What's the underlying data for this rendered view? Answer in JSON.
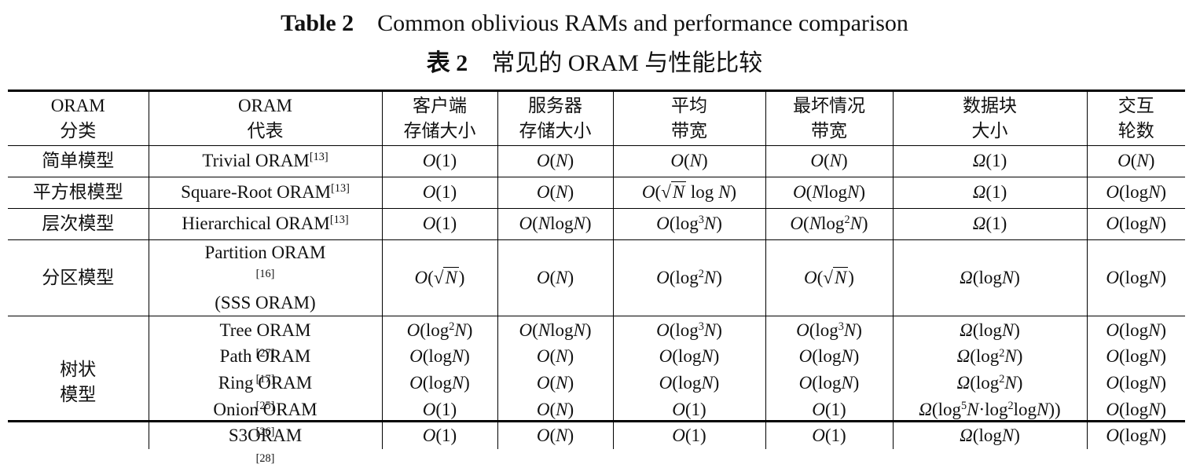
{
  "title": {
    "en_label": "Table 2",
    "en_text": "Common oblivious RAMs and performance comparison",
    "zh_label": "表 2",
    "zh_text": "常见的 ORAM 与性能比较"
  },
  "headers": [
    [
      "ORAM",
      "分类"
    ],
    [
      "ORAM",
      "代表"
    ],
    [
      "客户端",
      "存储大小"
    ],
    [
      "服务器",
      "存储大小"
    ],
    [
      "平均",
      "带宽"
    ],
    [
      "最坏情况",
      "带宽"
    ],
    [
      "数据块",
      "大小"
    ],
    [
      "交互",
      "轮数"
    ]
  ],
  "categories": {
    "simple": "简单模型",
    "sqrt": "平方根模型",
    "hier": "层次模型",
    "partition": "分区模型",
    "tree_l1": "树状",
    "tree_l2": "模型"
  },
  "representatives": {
    "trivial": "Trivial ORAM",
    "trivial_ref": "[13]",
    "square": "Square-Root ORAM",
    "square_ref": "[13]",
    "hier": "Hierarchical ORAM",
    "hier_ref": "[13]",
    "partition": "Partition ORAM",
    "partition_ref": "[16]",
    "partition_sub": "(SSS ORAM)",
    "tree": "Tree ORAM",
    "tree_ref": "[27]",
    "path": "Path ORAM",
    "path_ref": "[17]",
    "ring": "Ring ORAM",
    "ring_ref": "[25]",
    "onion": "Onion ORAM",
    "onion_ref": "[26]",
    "s3": "S3ORAM",
    "s3_ref": "[28]"
  },
  "cells": {
    "O1": "O(1)",
    "ON": "O(N)",
    "Omega1": "Ω(1)",
    "OlogN": "O(logN)",
    "ONlogN": "O(NlogN)",
    "OsqrtNlogN": "O(√N log N)",
    "Olog3N": "O(log³N)",
    "ONlog2N": "O(Nlog²N)",
    "OsqrtN": "O(√N)",
    "Olog2N": "O(log²N)",
    "OmegalogN": "Ω(logN)",
    "Omegalog2N": "Ω(log²N)",
    "Omegaonion": "Ω(log⁵N·log²logN))"
  }
}
